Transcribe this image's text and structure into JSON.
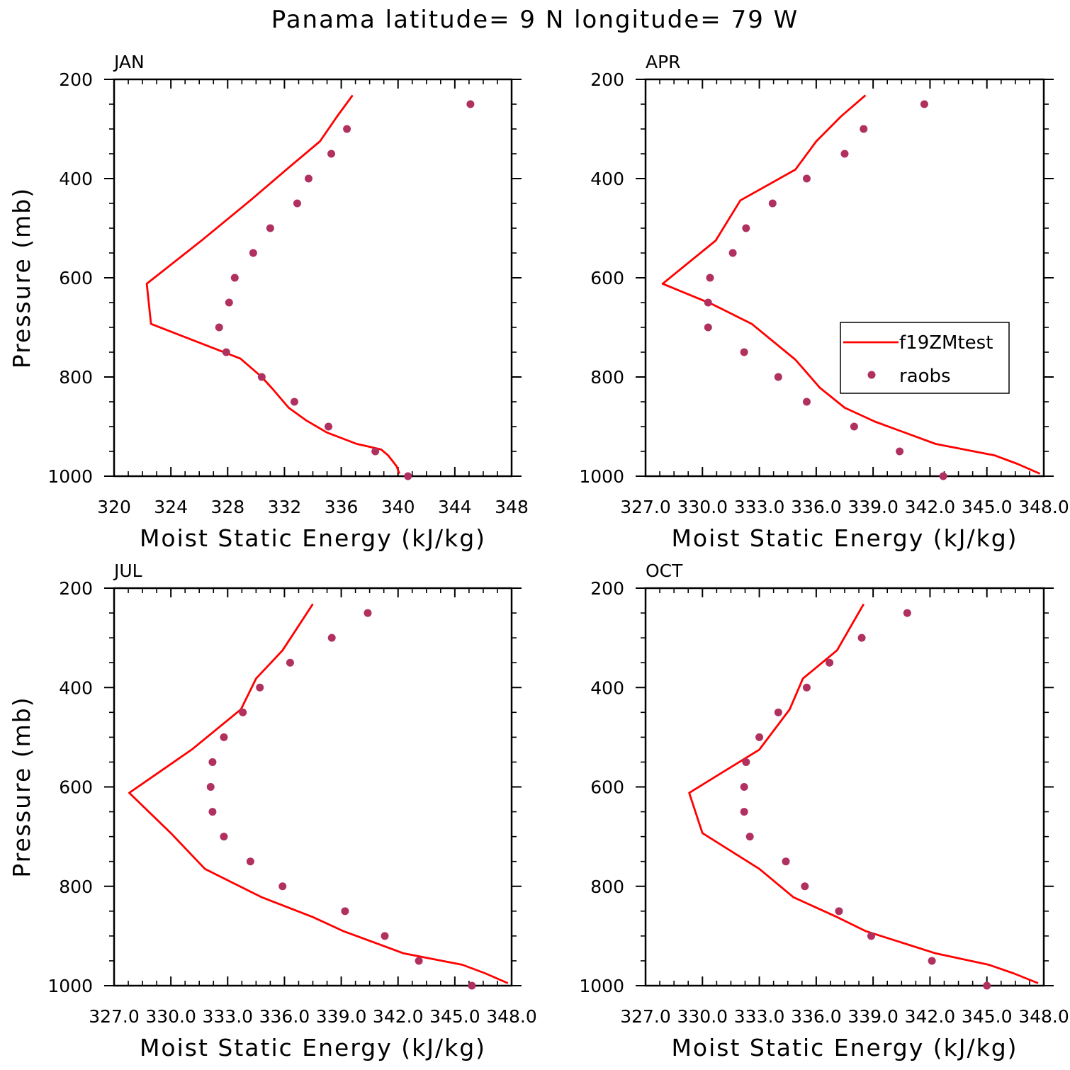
{
  "title": "Panama  latitude= 9 N longitude= 79 W",
  "colors": {
    "model": "#ff0000",
    "obs": "#b03060"
  },
  "chart_data": [
    {
      "type": "line",
      "panel_label": "JAN",
      "xlabel": "Moist Static Energy (kJ/kg)",
      "ylabel": "Pressure (mb)",
      "xlim": [
        320,
        348
      ],
      "ylim": [
        1000,
        200
      ],
      "y_inverted": true,
      "x_ticks": [
        320,
        324,
        328,
        332,
        336,
        340,
        344,
        348
      ],
      "x_tick_labels": [
        "320",
        "324",
        "328",
        "332",
        "336",
        "340",
        "344",
        "348"
      ],
      "y_ticks": [
        200,
        400,
        600,
        800,
        1000
      ],
      "y_tick_labels": [
        "200",
        "400",
        "600",
        "800",
        "1000"
      ],
      "legend": null,
      "series": [
        {
          "name": "f19ZMtest",
          "kind": "line",
          "x": [
            340.1,
            339.9,
            339.3,
            338.8,
            337.1,
            335.0,
            333.5,
            332.3,
            331.1,
            330.4,
            328.9,
            322.6,
            322.3,
            326.2,
            329.6,
            332.3,
            334.5,
            335.7,
            336.8
          ],
          "y": [
            995,
            980,
            958,
            946,
            935,
            912,
            887,
            862,
            822,
            800,
            763,
            693,
            612,
            524,
            444,
            378,
            325,
            275,
            232
          ]
        },
        {
          "name": "raobs",
          "kind": "scatter",
          "x": [
            340.7,
            338.4,
            335.1,
            332.7,
            330.4,
            327.9,
            327.4,
            328.1,
            328.5,
            329.8,
            331.0,
            332.9,
            333.7,
            335.3,
            336.4,
            345.1
          ],
          "y": [
            1000,
            950,
            900,
            850,
            800,
            750,
            700,
            650,
            600,
            550,
            500,
            450,
            400,
            350,
            300,
            250
          ]
        }
      ]
    },
    {
      "type": "line",
      "panel_label": "APR",
      "xlabel": "Moist Static Energy (kJ/kg)",
      "ylabel": "",
      "xlim": [
        327.0,
        348.0
      ],
      "ylim": [
        1000,
        200
      ],
      "y_inverted": true,
      "x_ticks": [
        327.0,
        330.0,
        333.0,
        336.0,
        339.0,
        342.0,
        345.0,
        348.0
      ],
      "x_tick_labels": [
        "327.0",
        "330.0",
        "333.0",
        "336.0",
        "339.0",
        "342.0",
        "345.0",
        "348.0"
      ],
      "y_ticks": [
        200,
        400,
        600,
        800,
        1000
      ],
      "y_tick_labels": [
        "200",
        "400",
        "600",
        "800",
        "1000"
      ],
      "legend": {
        "placement": "center-right",
        "entries": [
          "f19ZMtest",
          "raobs"
        ]
      },
      "series": [
        {
          "name": "f19ZMtest",
          "kind": "line",
          "x": [
            347.8,
            346.6,
            345.4,
            342.3,
            339.1,
            337.5,
            336.2,
            334.9,
            332.6,
            330.5,
            327.9,
            330.7,
            332.0,
            334.9,
            336.0,
            337.3,
            338.6
          ],
          "y": [
            995,
            975,
            958,
            935,
            890,
            862,
            822,
            765,
            693,
            653,
            612,
            525,
            444,
            382,
            325,
            275,
            232
          ]
        },
        {
          "name": "raobs",
          "kind": "scatter",
          "x": [
            342.7,
            340.4,
            338.0,
            335.5,
            334.0,
            332.2,
            330.3,
            330.3,
            330.4,
            331.6,
            332.3,
            333.7,
            335.5,
            337.5,
            338.5,
            341.7
          ],
          "y": [
            1000,
            950,
            900,
            850,
            800,
            750,
            700,
            650,
            600,
            550,
            500,
            450,
            400,
            350,
            300,
            250
          ]
        }
      ]
    },
    {
      "type": "line",
      "panel_label": "JUL",
      "xlabel": "Moist Static Energy (kJ/kg)",
      "ylabel": "Pressure (mb)",
      "xlim": [
        327.0,
        348.0
      ],
      "ylim": [
        1000,
        200
      ],
      "y_inverted": true,
      "x_ticks": [
        327.0,
        330.0,
        333.0,
        336.0,
        339.0,
        342.0,
        345.0,
        348.0
      ],
      "x_tick_labels": [
        "327.0",
        "330.0",
        "333.0",
        "336.0",
        "339.0",
        "342.0",
        "345.0",
        "348.0"
      ],
      "y_ticks": [
        200,
        400,
        600,
        800,
        1000
      ],
      "y_tick_labels": [
        "200",
        "400",
        "600",
        "800",
        "1000"
      ],
      "legend": null,
      "series": [
        {
          "name": "f19ZMtest",
          "kind": "line",
          "x": [
            347.8,
            346.6,
            345.4,
            342.3,
            339.1,
            337.5,
            334.8,
            331.8,
            330.0,
            327.8,
            331.1,
            333.7,
            334.5,
            335.9,
            337.5
          ],
          "y": [
            995,
            975,
            958,
            935,
            890,
            862,
            822,
            765,
            693,
            612,
            525,
            444,
            382,
            325,
            232
          ]
        },
        {
          "name": "raobs",
          "kind": "scatter",
          "x": [
            345.9,
            343.1,
            341.3,
            339.2,
            335.9,
            334.2,
            332.8,
            332.2,
            332.1,
            332.2,
            332.8,
            333.8,
            334.7,
            336.3,
            338.5,
            340.4
          ],
          "y": [
            1000,
            950,
            900,
            850,
            800,
            750,
            700,
            650,
            600,
            550,
            500,
            450,
            400,
            350,
            300,
            250
          ]
        }
      ]
    },
    {
      "type": "line",
      "panel_label": "OCT",
      "xlabel": "Moist Static Energy (kJ/kg)",
      "ylabel": "",
      "xlim": [
        327.0,
        348.0
      ],
      "ylim": [
        1000,
        200
      ],
      "y_inverted": true,
      "x_ticks": [
        327.0,
        330.0,
        333.0,
        336.0,
        339.0,
        342.0,
        345.0,
        348.0
      ],
      "x_tick_labels": [
        "327.0",
        "330.0",
        "333.0",
        "336.0",
        "339.0",
        "342.0",
        "345.0",
        "348.0"
      ],
      "y_ticks": [
        200,
        400,
        600,
        800,
        1000
      ],
      "y_tick_labels": [
        "200",
        "400",
        "600",
        "800",
        "1000"
      ],
      "legend": null,
      "series": [
        {
          "name": "f19ZMtest",
          "kind": "line",
          "x": [
            347.7,
            346.4,
            345.1,
            342.3,
            338.6,
            337.1,
            334.8,
            333.0,
            330.0,
            329.3,
            333.0,
            334.6,
            335.3,
            337.1,
            338.5
          ],
          "y": [
            995,
            975,
            958,
            935,
            890,
            862,
            822,
            765,
            693,
            612,
            525,
            444,
            382,
            325,
            232
          ]
        },
        {
          "name": "raobs",
          "kind": "scatter",
          "x": [
            345.0,
            342.1,
            338.9,
            337.2,
            335.4,
            334.4,
            332.5,
            332.2,
            332.2,
            332.3,
            333.0,
            334.0,
            335.5,
            336.7,
            338.4,
            340.8
          ],
          "y": [
            1000,
            950,
            900,
            850,
            800,
            750,
            700,
            650,
            600,
            550,
            500,
            450,
            400,
            350,
            300,
            250
          ]
        }
      ]
    }
  ]
}
